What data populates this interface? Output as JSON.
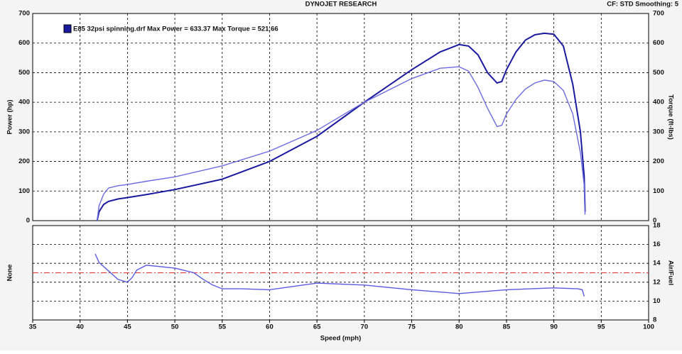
{
  "chart_data": [
    {
      "type": "line",
      "title": "DYNOJET RESEARCH",
      "subtitle": "CF: STD  Smoothing: 5",
      "legend": {
        "label": "E85 32psi spinning.drf Max Power = 633.37 Max Torque = 521.66",
        "color": "#1a1aa0"
      },
      "ylabel": "Power (hp)",
      "y2label": "Torque (ft-lbs)",
      "xlim": [
        35,
        100
      ],
      "xticks": [
        35,
        40,
        45,
        50,
        55,
        60,
        65,
        70,
        75,
        80,
        85,
        90,
        95,
        100
      ],
      "ylim": [
        0,
        700
      ],
      "yticks": [
        0,
        100,
        200,
        300,
        400,
        500,
        600,
        700
      ],
      "y2lim": [
        0,
        700
      ],
      "y2ticks": [
        0,
        100,
        200,
        300,
        400,
        500,
        600,
        700
      ],
      "grid": true,
      "x": [
        41.8,
        42,
        42.5,
        43,
        44,
        45,
        47,
        50,
        55,
        60,
        65,
        70,
        75,
        78,
        80,
        81,
        82,
        83,
        84,
        84.5,
        85,
        86,
        87,
        88,
        89,
        90,
        91,
        92,
        92.8,
        93.2,
        93.3
      ],
      "series": [
        {
          "color": "#1a1aa0",
          "values": [
            0,
            30,
            55,
            65,
            73,
            78,
            88,
            105,
            140,
            200,
            285,
            400,
            510,
            570,
            595,
            590,
            560,
            500,
            465,
            470,
            510,
            570,
            610,
            628,
            633,
            630,
            590,
            460,
            300,
            150,
            30
          ]
        },
        {
          "color": "#6b6be0",
          "axis": "y2",
          "values": [
            0,
            50,
            90,
            110,
            118,
            122,
            133,
            148,
            185,
            235,
            305,
            400,
            480,
            515,
            520,
            505,
            450,
            380,
            318,
            322,
            360,
            410,
            445,
            465,
            475,
            470,
            440,
            360,
            230,
            120,
            20
          ]
        }
      ]
    },
    {
      "type": "line",
      "xlabel": "Speed (mph)",
      "ylabel": "None",
      "y2label": "Air/Fuel",
      "xlim": [
        35,
        100
      ],
      "xticks": [
        35,
        40,
        45,
        50,
        55,
        60,
        65,
        70,
        75,
        80,
        85,
        90,
        95,
        100
      ],
      "ylim": [
        8,
        18
      ],
      "yticks": [
        8,
        10,
        12,
        14,
        16,
        18
      ],
      "ytick_side": "right",
      "grid": true,
      "reference_line": {
        "value": 13,
        "color": "#e03030"
      },
      "x": [
        41.6,
        42,
        43,
        44,
        45,
        45.5,
        46,
        47,
        48,
        50,
        52,
        53,
        54,
        55,
        57,
        60,
        65,
        70,
        75,
        80,
        85,
        90,
        92.5,
        93,
        93.2
      ],
      "series": [
        {
          "color": "#5a5ae0",
          "values": [
            15,
            14.1,
            13.2,
            12.3,
            12,
            12.5,
            13.3,
            13.8,
            13.7,
            13.5,
            13,
            12.3,
            11.7,
            11.3,
            11.3,
            11.2,
            11.9,
            11.7,
            11.2,
            10.8,
            11.2,
            11.4,
            11.3,
            11.2,
            10.5
          ]
        }
      ]
    }
  ]
}
